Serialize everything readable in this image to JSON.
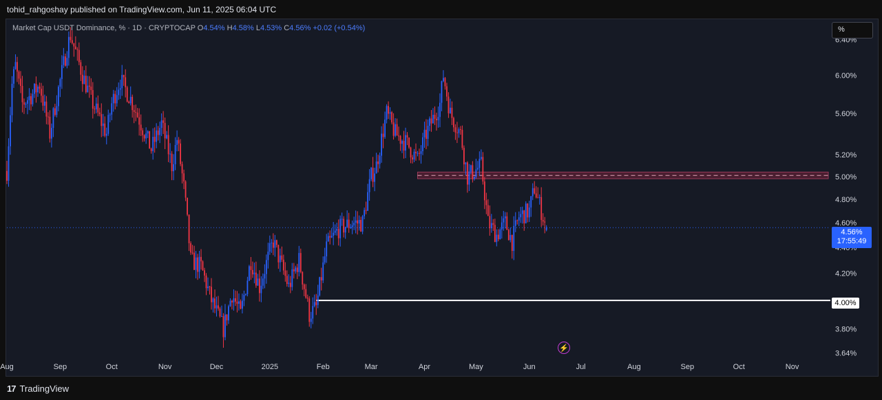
{
  "header": {
    "publisher_text": "tohid_rahgoshay published on TradingView.com, Jun 11, 2025 06:04 UTC"
  },
  "legend": {
    "symbol": "Market Cap USDT Dominance, % · 1D · CRYPTOCAP",
    "o_label": "O",
    "o_value": "4.54%",
    "h_label": "H",
    "h_value": "4.58%",
    "l_label": "L",
    "l_value": "4.53%",
    "c_label": "C",
    "c_value": "4.56%",
    "change": "+0.02 (+0.54%)"
  },
  "scale_button": "%",
  "footer": {
    "brand": "TradingView"
  },
  "last_price": {
    "price": "4.56%",
    "countdown": "17:55:49"
  },
  "level_label": "4.00%",
  "colors": {
    "up": "#2962ff",
    "down": "#f23645",
    "background": "#161a25",
    "zone": "#4a1e30"
  },
  "chart_data": {
    "type": "candlestick",
    "title": "",
    "y_scale": "log",
    "ylim": [
      3.61,
      6.62
    ],
    "y_ticks": [
      {
        "value": 6.4,
        "label": "6.40%"
      },
      {
        "value": 6.0,
        "label": "6.00%"
      },
      {
        "value": 5.6,
        "label": "5.60%"
      },
      {
        "value": 5.2,
        "label": "5.20%"
      },
      {
        "value": 5.0,
        "label": "5.00%"
      },
      {
        "value": 4.8,
        "label": "4.80%"
      },
      {
        "value": 4.6,
        "label": "4.60%"
      },
      {
        "value": 4.4,
        "label": "4.40%"
      },
      {
        "value": 4.2,
        "label": "4.20%"
      },
      {
        "value": 4.0,
        "label": "4.00%"
      },
      {
        "value": 3.8,
        "label": "3.80%"
      },
      {
        "value": 3.64,
        "label": "3.64%"
      }
    ],
    "x_ticks": [
      "Aug",
      "Sep",
      "Oct",
      "Nov",
      "Dec",
      "2025",
      "Feb",
      "Mar",
      "Apr",
      "May",
      "Jun",
      "Jul",
      "Aug",
      "Sep",
      "Oct",
      "Nov"
    ],
    "x_range": [
      "2024-08-01",
      "2025-11-22"
    ],
    "anchors": [
      [
        "2024-08-01",
        5.05
      ],
      [
        "2024-08-04",
        5.9
      ],
      [
        "2024-08-06",
        6.1
      ],
      [
        "2024-08-10",
        5.7
      ],
      [
        "2024-08-16",
        5.8
      ],
      [
        "2024-08-20",
        5.9
      ],
      [
        "2024-08-26",
        5.4
      ],
      [
        "2024-09-05",
        6.3
      ],
      [
        "2024-09-07",
        6.45
      ],
      [
        "2024-09-14",
        6.0
      ],
      [
        "2024-09-20",
        5.7
      ],
      [
        "2024-09-28",
        5.4
      ],
      [
        "2024-10-01",
        5.7
      ],
      [
        "2024-10-06",
        5.95
      ],
      [
        "2024-10-12",
        5.75
      ],
      [
        "2024-10-18",
        5.5
      ],
      [
        "2024-10-24",
        5.25
      ],
      [
        "2024-10-30",
        5.5
      ],
      [
        "2024-11-05",
        5.1
      ],
      [
        "2024-11-08",
        5.35
      ],
      [
        "2024-11-12",
        4.9
      ],
      [
        "2024-11-16",
        4.3
      ],
      [
        "2024-11-22",
        4.25
      ],
      [
        "2024-11-28",
        4.0
      ],
      [
        "2024-12-05",
        3.8
      ],
      [
        "2024-12-10",
        4.05
      ],
      [
        "2024-12-15",
        3.9
      ],
      [
        "2024-12-21",
        4.3
      ],
      [
        "2024-12-26",
        4.1
      ],
      [
        "2025-01-03",
        4.45
      ],
      [
        "2025-01-08",
        4.25
      ],
      [
        "2025-01-12",
        4.1
      ],
      [
        "2025-01-18",
        4.3
      ],
      [
        "2025-01-24",
        3.9
      ],
      [
        "2025-01-28",
        3.95
      ],
      [
        "2025-02-03",
        4.4
      ],
      [
        "2025-02-10",
        4.55
      ],
      [
        "2025-02-18",
        4.6
      ],
      [
        "2025-02-24",
        4.6
      ],
      [
        "2025-03-01",
        5.0
      ],
      [
        "2025-03-04",
        5.1
      ],
      [
        "2025-03-10",
        5.6
      ],
      [
        "2025-03-15",
        5.4
      ],
      [
        "2025-03-22",
        5.3
      ],
      [
        "2025-03-28",
        5.15
      ],
      [
        "2025-04-02",
        5.4
      ],
      [
        "2025-04-06",
        5.55
      ],
      [
        "2025-04-10",
        5.7
      ],
      [
        "2025-04-12",
        6.0
      ],
      [
        "2025-04-16",
        5.6
      ],
      [
        "2025-04-22",
        5.4
      ],
      [
        "2025-04-26",
        5.0
      ],
      [
        "2025-04-30",
        5.05
      ],
      [
        "2025-05-04",
        5.1
      ],
      [
        "2025-05-08",
        4.6
      ],
      [
        "2025-05-13",
        4.5
      ],
      [
        "2025-05-18",
        4.6
      ],
      [
        "2025-05-22",
        4.45
      ],
      [
        "2025-05-26",
        4.65
      ],
      [
        "2025-06-01",
        4.7
      ],
      [
        "2025-06-04",
        4.9
      ],
      [
        "2025-06-07",
        4.75
      ],
      [
        "2025-06-10",
        4.6
      ],
      [
        "2025-06-11",
        4.56
      ]
    ],
    "last_candle": {
      "date": "2025-06-11",
      "open": 4.54,
      "high": 4.58,
      "low": 4.53,
      "close": 4.56
    },
    "resistance_zone": {
      "low": 4.98,
      "high": 5.04,
      "from": "2025-03-28",
      "to": "2025-11-22"
    },
    "support_level": {
      "value": 4.0,
      "from": "2025-01-28"
    }
  }
}
